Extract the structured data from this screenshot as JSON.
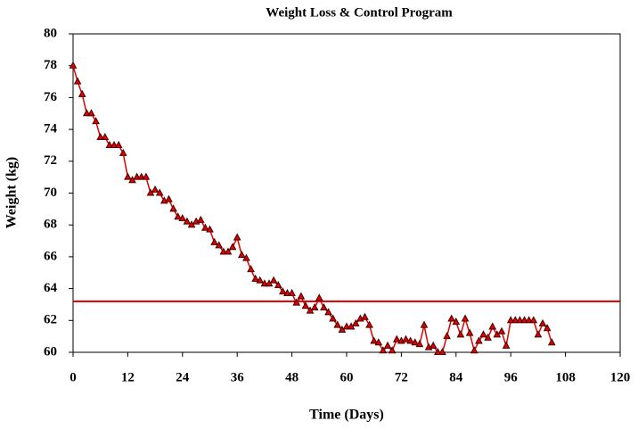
{
  "chart_data": {
    "type": "line",
    "title": "Weight Loss & Control Program",
    "x_label": "Time (Days)",
    "y_label": "Weight (kg)",
    "x": [
      0,
      1,
      2,
      3,
      4,
      5,
      6,
      7,
      8,
      9,
      10,
      11,
      12,
      13,
      14,
      15,
      16,
      17,
      18,
      19,
      20,
      21,
      22,
      23,
      24,
      25,
      26,
      27,
      28,
      29,
      30,
      31,
      32,
      33,
      34,
      35,
      36,
      37,
      38,
      39,
      40,
      41,
      42,
      43,
      44,
      45,
      46,
      47,
      48,
      49,
      50,
      51,
      52,
      53,
      54,
      55,
      56,
      57,
      58,
      59,
      60,
      61,
      62,
      63,
      64,
      65,
      66,
      67,
      68,
      69,
      70,
      71,
      72,
      73,
      74,
      75,
      76,
      77,
      78,
      79,
      80,
      81,
      82,
      83,
      84,
      85,
      86,
      87,
      88,
      89,
      90,
      91,
      92,
      93,
      94,
      95,
      96,
      97,
      98,
      99,
      100,
      101,
      102,
      103,
      104,
      105
    ],
    "series": [
      {
        "color": "#e00000",
        "marker_color": "#400000",
        "values": [
          78,
          77,
          76.2,
          75,
          75,
          74.5,
          73.5,
          73.5,
          73,
          73,
          73,
          72.5,
          71,
          70.8,
          71,
          71,
          71,
          70,
          70.2,
          70,
          69.5,
          69.6,
          69,
          68.5,
          68.4,
          68.2,
          68,
          68.2,
          68.3,
          67.8,
          67.7,
          66.9,
          66.7,
          66.3,
          66.3,
          66.6,
          67.2,
          66.1,
          65.9,
          65.2,
          64.6,
          64.5,
          64.3,
          64.3,
          64.5,
          64.2,
          63.8,
          63.7,
          63.7,
          63.1,
          63.5,
          62.9,
          62.6,
          62.8,
          63.4,
          62.8,
          62.5,
          62.1,
          61.7,
          61.4,
          61.6,
          61.6,
          61.8,
          62.1,
          62.2,
          61.7,
          60.7,
          60.6,
          60.1,
          60.4,
          60.1,
          60.8,
          60.7,
          60.8,
          60.7,
          60.6,
          60.5,
          61.7,
          60.3,
          60.4,
          60,
          60,
          61,
          62.1,
          61.9,
          61.1,
          62.1,
          61.2,
          60.1,
          60.7,
          61.1,
          60.9,
          61.6,
          61.1,
          61.3,
          60.4,
          62,
          62,
          62,
          62,
          62,
          62,
          61.1,
          61.8,
          61.5,
          60.6
        ]
      }
    ],
    "reference_line": 63.2,
    "reference_color": "#d00000",
    "xlim": [
      0,
      120
    ],
    "xticks": [
      0,
      12,
      24,
      36,
      48,
      60,
      72,
      84,
      96,
      108,
      120
    ],
    "ylim": [
      60,
      80
    ],
    "yticks": [
      60,
      62,
      64,
      66,
      68,
      70,
      72,
      74,
      76,
      78,
      80
    ]
  }
}
